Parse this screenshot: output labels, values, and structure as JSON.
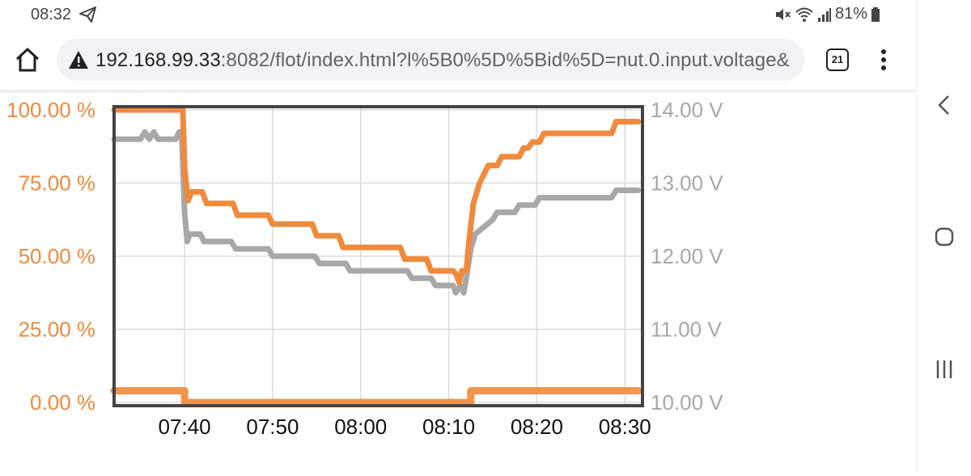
{
  "status_bar": {
    "time": "08:32",
    "battery": "81%",
    "icons": [
      "telegram-send-icon",
      "mute-icon",
      "wifi-icon",
      "signal-icon",
      "battery-icon"
    ]
  },
  "browser": {
    "url_host": "192.168.99.33",
    "url_rest": ":8082/flot/index.html?l%5B0%5D%5Bid%5D=nut.0.input.voltage&",
    "tab_count": "21",
    "icons": [
      "home-icon",
      "warning-icon",
      "tabs-icon",
      "more-vert-icon"
    ]
  },
  "chart_data": {
    "type": "line",
    "x_ticks": [
      "07:40",
      "07:50",
      "08:00",
      "08:10",
      "08:20",
      "08:30"
    ],
    "y_left_ticks": [
      "0.00 %",
      "25.00 %",
      "50.00 %",
      "75.00 %",
      "100.00 %"
    ],
    "y_right_ticks": [
      "10.00 V",
      "11.00 V",
      "12.00 V",
      "13.00 V",
      "14.00 V"
    ],
    "y_left_range": [
      0,
      100
    ],
    "y_right_range": [
      10,
      14
    ],
    "x_range_minutes_from_0740": [
      -8,
      52
    ],
    "grid": true,
    "colors": {
      "charge": "#f08a3c",
      "voltage": "#a8a8a8",
      "frame": "#444444"
    },
    "series": [
      {
        "axis": "left",
        "points": [
          [
            -8,
            100
          ],
          [
            -0.2,
            100
          ],
          [
            0,
            80
          ],
          [
            0.4,
            69
          ],
          [
            0.8,
            72
          ],
          [
            2,
            72
          ],
          [
            2.5,
            68
          ],
          [
            5.5,
            68
          ],
          [
            6,
            64
          ],
          [
            9.5,
            64
          ],
          [
            10,
            61
          ],
          [
            14.5,
            61
          ],
          [
            15,
            57
          ],
          [
            17.5,
            57
          ],
          [
            18,
            53
          ],
          [
            24.5,
            53
          ],
          [
            25,
            49
          ],
          [
            27.5,
            49
          ],
          [
            28,
            45
          ],
          [
            30.5,
            45
          ],
          [
            30.8,
            44
          ],
          [
            31.2,
            41
          ],
          [
            31.5,
            45
          ],
          [
            32,
            45
          ],
          [
            32.3,
            55
          ],
          [
            32.8,
            68
          ],
          [
            33.5,
            75
          ],
          [
            34,
            78
          ],
          [
            34.5,
            81
          ],
          [
            35.5,
            81
          ],
          [
            36,
            84
          ],
          [
            38,
            84
          ],
          [
            38.5,
            87
          ],
          [
            39,
            87
          ],
          [
            39.5,
            89
          ],
          [
            40.3,
            89
          ],
          [
            40.8,
            92
          ],
          [
            48.5,
            92
          ],
          [
            49,
            96
          ],
          [
            51.5,
            96
          ]
        ]
      },
      {
        "axis": "right",
        "points": [
          [
            -8,
            13.6
          ],
          [
            -5,
            13.6
          ],
          [
            -4.5,
            13.7
          ],
          [
            -4,
            13.6
          ],
          [
            -3.5,
            13.7
          ],
          [
            -3,
            13.6
          ],
          [
            -1,
            13.6
          ],
          [
            -0.6,
            13.7
          ],
          [
            -0.3,
            13.6
          ],
          [
            0,
            12.6
          ],
          [
            0.3,
            12.2
          ],
          [
            0.6,
            12.3
          ],
          [
            1.8,
            12.3
          ],
          [
            2.2,
            12.2
          ],
          [
            5.3,
            12.2
          ],
          [
            5.8,
            12.1
          ],
          [
            9.5,
            12.1
          ],
          [
            10,
            12.0
          ],
          [
            14.8,
            12.0
          ],
          [
            15.3,
            11.9
          ],
          [
            18.3,
            11.9
          ],
          [
            18.8,
            11.8
          ],
          [
            25.3,
            11.8
          ],
          [
            25.8,
            11.7
          ],
          [
            28,
            11.7
          ],
          [
            28.5,
            11.6
          ],
          [
            30.5,
            11.6
          ],
          [
            30.8,
            11.5
          ],
          [
            31.3,
            11.6
          ],
          [
            31.7,
            11.5
          ],
          [
            32,
            11.7
          ],
          [
            32.5,
            12.1
          ],
          [
            33,
            12.3
          ],
          [
            34,
            12.4
          ],
          [
            35,
            12.5
          ],
          [
            35.5,
            12.6
          ],
          [
            37.5,
            12.6
          ],
          [
            38,
            12.7
          ],
          [
            39.8,
            12.7
          ],
          [
            40.3,
            12.8
          ],
          [
            48.5,
            12.8
          ],
          [
            49,
            12.9
          ],
          [
            51.5,
            12.9
          ]
        ]
      },
      {
        "axis": "left",
        "points": [
          [
            -8,
            4
          ],
          [
            0,
            4
          ],
          [
            0,
            0
          ],
          [
            32.5,
            0
          ],
          [
            32.5,
            4
          ],
          [
            51.5,
            4
          ]
        ]
      }
    ]
  }
}
